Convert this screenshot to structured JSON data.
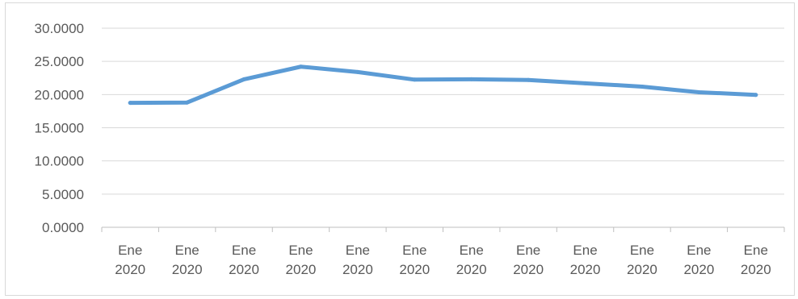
{
  "chart_data": {
    "type": "line",
    "categories": [
      "Ene 2020",
      "Ene 2020",
      "Ene 2020",
      "Ene 2020",
      "Ene 2020",
      "Ene 2020",
      "Ene 2020",
      "Ene 2020",
      "Ene 2020",
      "Ene 2020",
      "Ene 2020",
      "Ene 2020"
    ],
    "category_lines": [
      [
        "Ene",
        "2020"
      ],
      [
        "Ene",
        "2020"
      ],
      [
        "Ene",
        "2020"
      ],
      [
        "Ene",
        "2020"
      ],
      [
        "Ene",
        "2020"
      ],
      [
        "Ene",
        "2020"
      ],
      [
        "Ene",
        "2020"
      ],
      [
        "Ene",
        "2020"
      ],
      [
        "Ene",
        "2020"
      ],
      [
        "Ene",
        "2020"
      ],
      [
        "Ene",
        "2020"
      ],
      [
        "Ene",
        "2020"
      ]
    ],
    "series": [
      {
        "values": [
          18.75,
          18.8,
          22.3,
          24.2,
          23.4,
          22.25,
          22.3,
          22.2,
          21.7,
          21.2,
          20.35,
          19.95
        ]
      }
    ],
    "yticks": [
      "0.0000",
      "5.0000",
      "10.0000",
      "15.0000",
      "20.0000",
      "25.0000",
      "30.0000"
    ],
    "ylim": [
      0,
      30
    ],
    "ystep": 5,
    "title": "",
    "xlabel": "",
    "ylabel": "",
    "grid": true,
    "legend": "none",
    "colors": {
      "line": "#5b9bd5",
      "grid": "#d9d9d9",
      "axis": "#bfbfbf",
      "text": "#595959"
    }
  }
}
